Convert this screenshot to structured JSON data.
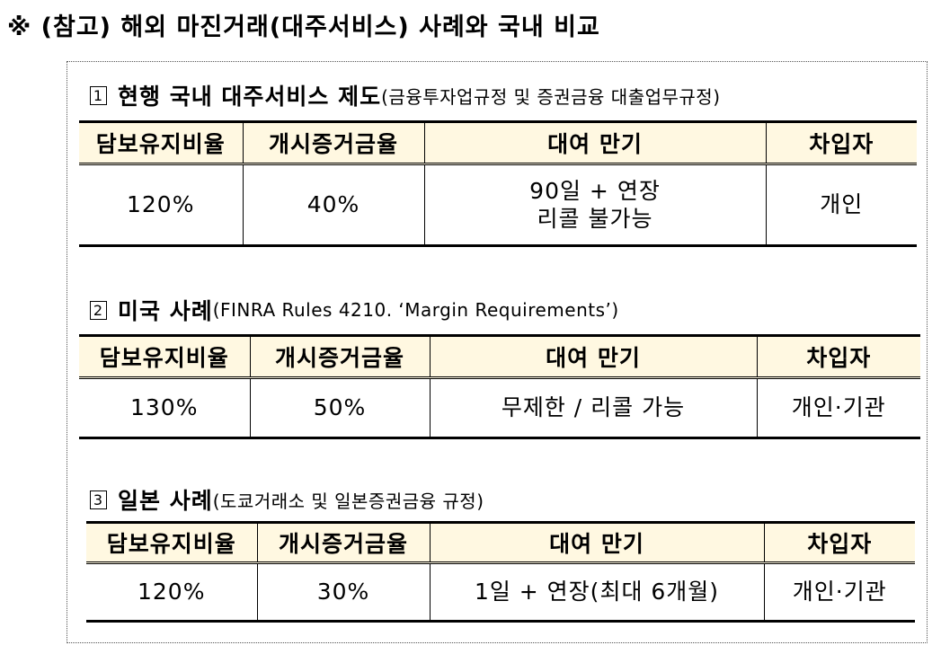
{
  "heading": "※ (참고) 해외 마진거래(대주서비스) 사례와 국내 비교",
  "headers": [
    "담보유지비율",
    "개시증거금율",
    "대여 만기",
    "차입자"
  ],
  "sections": [
    {
      "number": "1",
      "title": "현행 국내 대주서비스 제도",
      "subtitle": "(금융투자업규정 및 증권금융 대출업무규정)",
      "row": {
        "maintenance_ratio": "120%",
        "initial_margin": "40%",
        "term_line1": "90일 + 연장",
        "term_line2": "리콜 불가능",
        "borrower": "개인"
      }
    },
    {
      "number": "2",
      "title": "미국 사례",
      "subtitle": "(FINRA Rules 4210. ‘Margin Requirements’)",
      "row": {
        "maintenance_ratio": "130%",
        "initial_margin": "50%",
        "term": "무제한 / 리콜 가능",
        "borrower": "개인·기관"
      }
    },
    {
      "number": "3",
      "title": "일본 사례",
      "subtitle": "(도쿄거래소 및 일본증권금융 규정)",
      "row": {
        "maintenance_ratio": "120%",
        "initial_margin": "30%",
        "term": "1일 + 연장(최대 6개월)",
        "borrower": "개인·기관"
      }
    }
  ]
}
